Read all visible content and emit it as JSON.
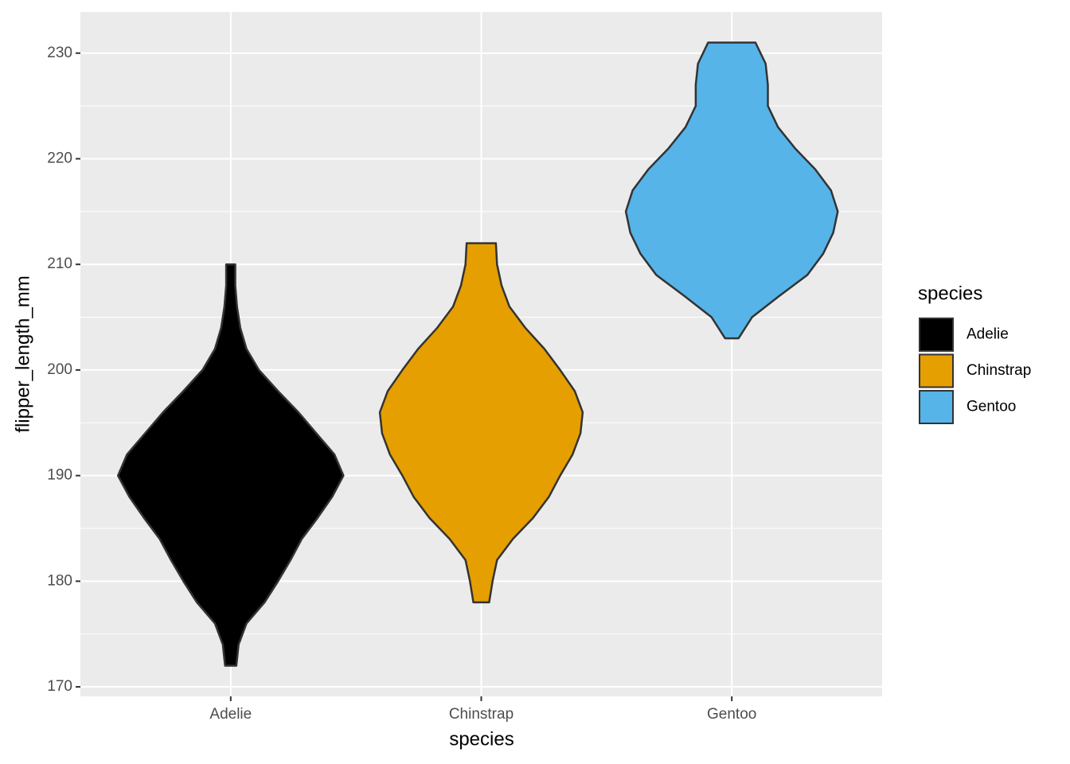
{
  "chart_data": {
    "type": "violin",
    "x_label": "species",
    "y_label": "flipper_length_mm",
    "legend_title": "species",
    "categories": [
      "Adelie",
      "Chinstrap",
      "Gentoo"
    ],
    "ylim": [
      169.1,
      233.9
    ],
    "yticks": [
      170,
      180,
      190,
      200,
      210,
      220,
      230
    ],
    "grid": true,
    "legend": "right",
    "series": [
      {
        "name": "Adelie",
        "color": "#000000",
        "y": [
          172,
          174,
          176,
          178,
          180,
          182,
          184,
          186,
          188,
          190,
          192,
          194,
          196,
          198,
          200,
          202,
          204,
          206,
          208,
          210
        ],
        "density": [
          0.05,
          0.07,
          0.14,
          0.3,
          0.42,
          0.53,
          0.63,
          0.77,
          0.9,
          1,
          0.92,
          0.76,
          0.6,
          0.42,
          0.25,
          0.14,
          0.085,
          0.056,
          0.04,
          0.04
        ]
      },
      {
        "name": "Chinstrap",
        "color": "#e69f00",
        "y": [
          178,
          180,
          182,
          184,
          186,
          188,
          190,
          192,
          194,
          196,
          198,
          200,
          202,
          204,
          206,
          208,
          210,
          212
        ],
        "density": [
          0.07,
          0.1,
          0.14,
          0.28,
          0.46,
          0.6,
          0.7,
          0.81,
          0.88,
          0.9,
          0.83,
          0.7,
          0.56,
          0.39,
          0.25,
          0.18,
          0.14,
          0.13
        ]
      },
      {
        "name": "Gentoo",
        "color": "#56b4e9",
        "y": [
          203,
          205,
          207,
          209,
          211,
          213,
          215,
          217,
          219,
          221,
          223,
          225,
          227,
          229,
          231
        ],
        "density": [
          0.06,
          0.18,
          0.42,
          0.67,
          0.81,
          0.9,
          0.94,
          0.88,
          0.74,
          0.56,
          0.41,
          0.32,
          0.32,
          0.3,
          0.21
        ]
      }
    ]
  }
}
